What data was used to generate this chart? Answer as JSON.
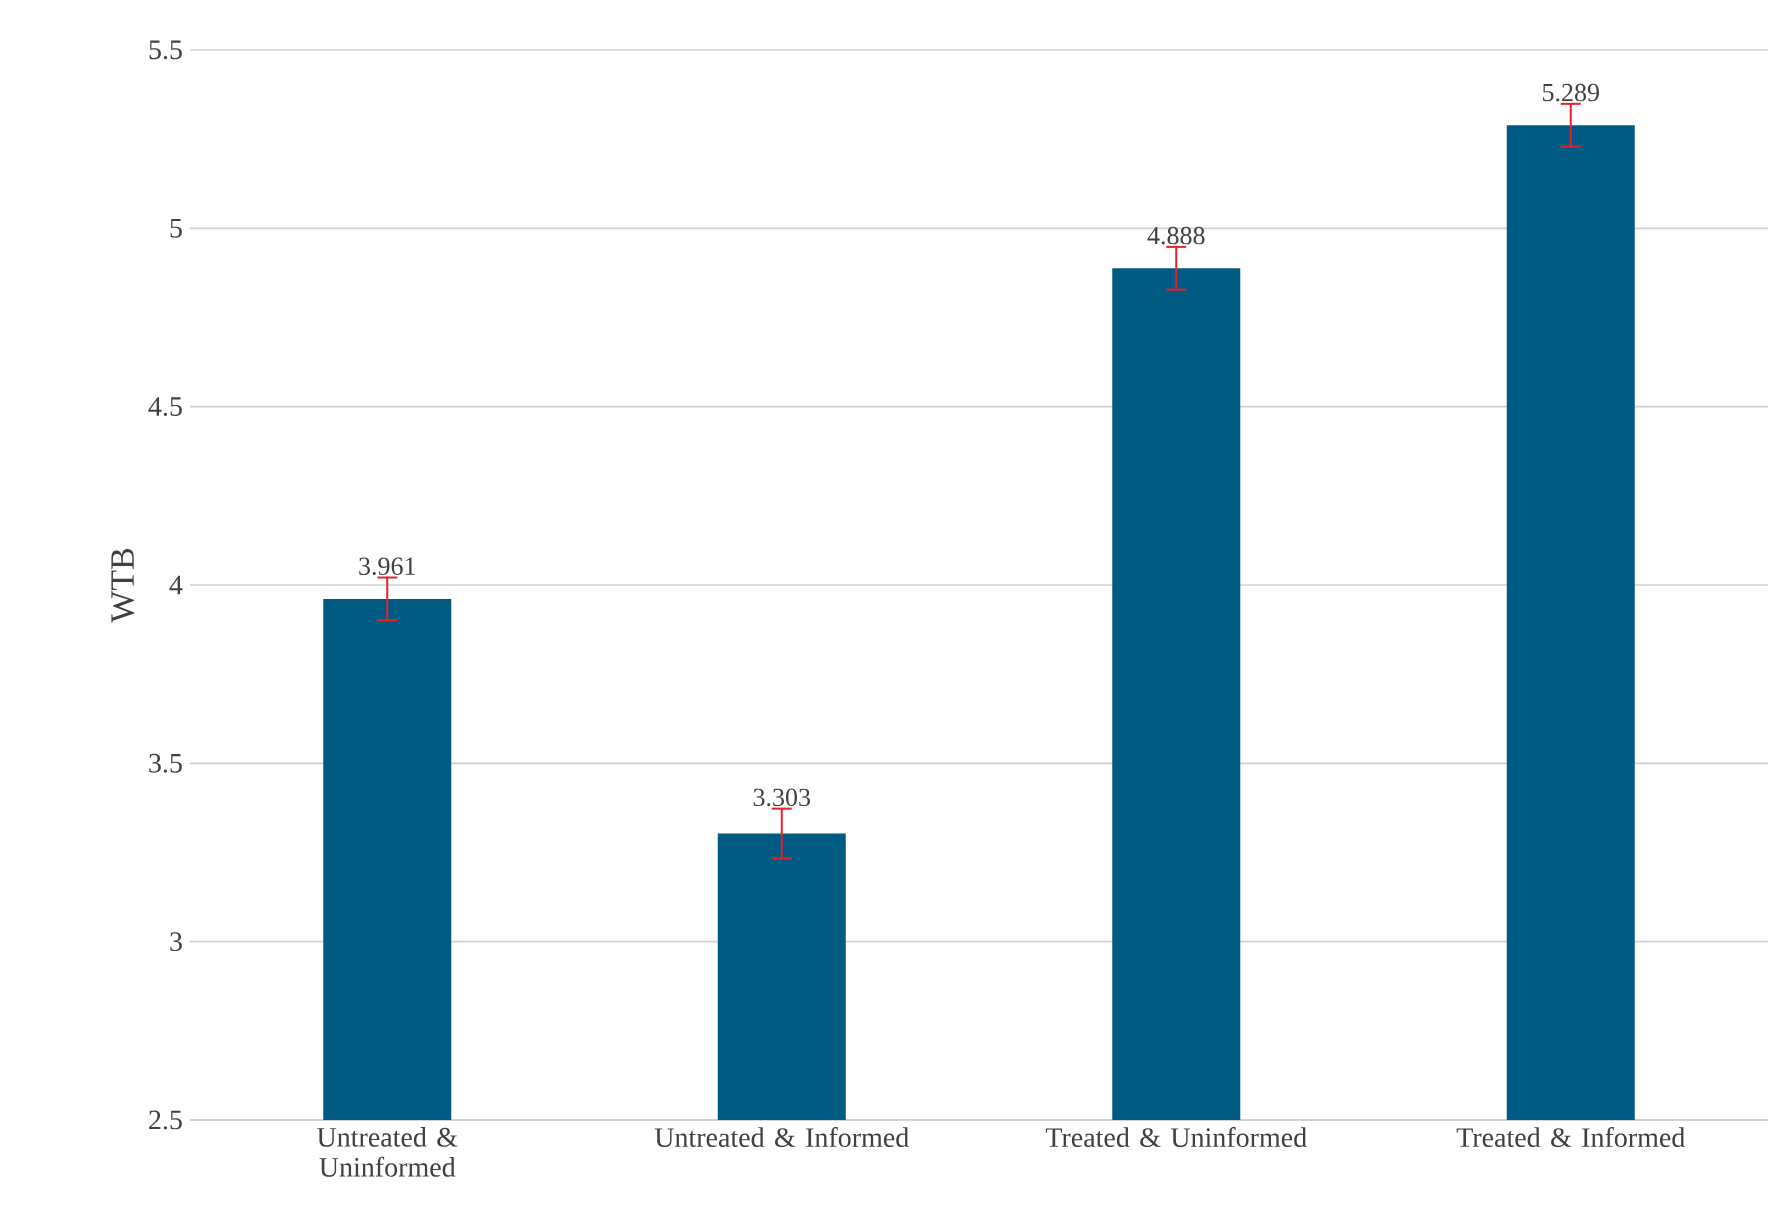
{
  "chart_data": {
    "type": "bar",
    "ylabel": "WTB",
    "categories": [
      "Untreated & Uninformed",
      "Untreated & Informed",
      "Treated & Uninformed",
      "Treated & Informed"
    ],
    "values": [
      3.961,
      3.303,
      4.888,
      5.289
    ],
    "errors": [
      0.06,
      0.07,
      0.06,
      0.06
    ],
    "color": "#005b82",
    "ylim": [
      2.5,
      5.5
    ],
    "yticks": [
      2.5,
      3,
      3.5,
      4,
      4.5,
      5,
      5.5
    ],
    "grid": "y",
    "data_labels": true
  }
}
